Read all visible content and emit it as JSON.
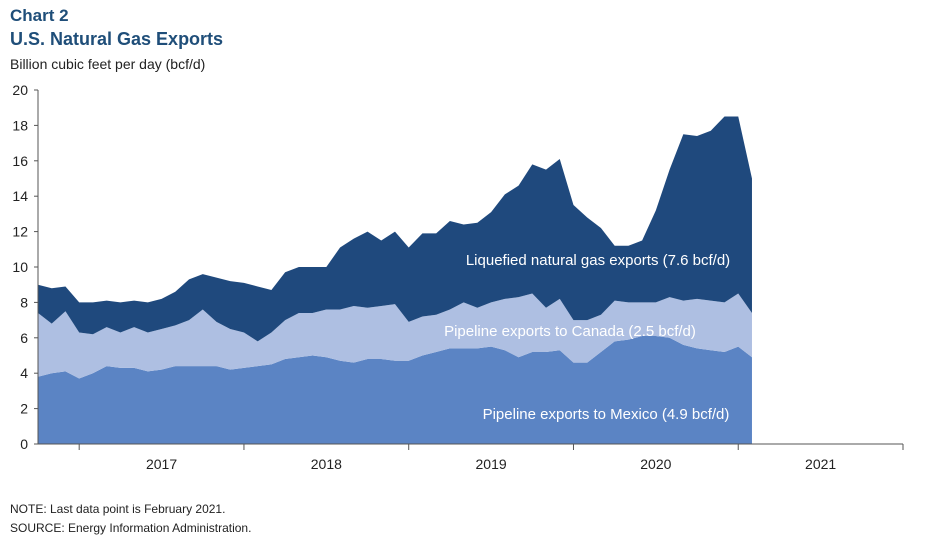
{
  "header": {
    "chart_label": "Chart 2",
    "title": "U.S. Natural Gas Exports",
    "units": "Billion cubic feet per day (bcf/d)"
  },
  "notes": {
    "note": "NOTE: Last data point is February 2021.",
    "source": "SOURCE: Energy Information  Administration."
  },
  "colors": {
    "mexico": "#5b84c4",
    "canada": "#aebfe2",
    "lng": "#1f497d",
    "axis": "#555555",
    "label_text": "#ffffff"
  },
  "chart_data": {
    "type": "area",
    "stacked": true,
    "ylim": [
      0,
      20
    ],
    "yticks": [
      0,
      2,
      4,
      6,
      8,
      10,
      12,
      14,
      16,
      18,
      20
    ],
    "x_start": "2016-10",
    "x_end": "2021-12",
    "year_labels": [
      "2017",
      "2018",
      "2019",
      "2020",
      "2021"
    ],
    "grid": false,
    "x": [
      "2016-10",
      "2016-11",
      "2016-12",
      "2017-01",
      "2017-02",
      "2017-03",
      "2017-04",
      "2017-05",
      "2017-06",
      "2017-07",
      "2017-08",
      "2017-09",
      "2017-10",
      "2017-11",
      "2017-12",
      "2018-01",
      "2018-02",
      "2018-03",
      "2018-04",
      "2018-05",
      "2018-06",
      "2018-07",
      "2018-08",
      "2018-09",
      "2018-10",
      "2018-11",
      "2018-12",
      "2019-01",
      "2019-02",
      "2019-03",
      "2019-04",
      "2019-05",
      "2019-06",
      "2019-07",
      "2019-08",
      "2019-09",
      "2019-10",
      "2019-11",
      "2019-12",
      "2020-01",
      "2020-02",
      "2020-03",
      "2020-04",
      "2020-05",
      "2020-06",
      "2020-07",
      "2020-08",
      "2020-09",
      "2020-10",
      "2020-11",
      "2020-12",
      "2021-01",
      "2021-02"
    ],
    "series": [
      {
        "name": "Pipeline exports to Mexico (4.9 bcf/d)",
        "values": [
          3.8,
          4.0,
          4.1,
          3.7,
          4.0,
          4.4,
          4.3,
          4.3,
          4.1,
          4.2,
          4.4,
          4.4,
          4.4,
          4.4,
          4.2,
          4.3,
          4.4,
          4.5,
          4.8,
          4.9,
          5.0,
          4.9,
          4.7,
          4.6,
          4.8,
          4.8,
          4.7,
          4.7,
          5.0,
          5.2,
          5.4,
          5.4,
          5.4,
          5.5,
          5.3,
          4.9,
          5.2,
          5.2,
          5.3,
          4.6,
          4.6,
          5.2,
          5.8,
          5.9,
          6.1,
          6.1,
          6.0,
          5.6,
          5.4,
          5.3,
          5.2,
          5.5,
          4.9
        ]
      },
      {
        "name": "Pipeline exports to Canada (2.5 bcf/d)",
        "values": [
          3.6,
          2.8,
          3.4,
          2.6,
          2.2,
          2.2,
          2.0,
          2.3,
          2.2,
          2.3,
          2.3,
          2.6,
          3.2,
          2.5,
          2.3,
          2.0,
          1.4,
          1.8,
          2.2,
          2.5,
          2.4,
          2.7,
          2.9,
          3.2,
          2.9,
          3.0,
          3.2,
          2.2,
          2.2,
          2.1,
          2.2,
          2.6,
          2.3,
          2.5,
          2.9,
          3.4,
          3.3,
          2.5,
          2.9,
          2.4,
          2.4,
          2.1,
          2.3,
          2.1,
          1.9,
          1.9,
          2.3,
          2.5,
          2.8,
          2.8,
          2.8,
          3.0,
          2.5
        ]
      },
      {
        "name": "Liquefied natural  gas exports (7.6 bcf/d)",
        "values": [
          1.6,
          2.0,
          1.4,
          1.7,
          1.8,
          1.5,
          1.7,
          1.5,
          1.7,
          1.7,
          1.9,
          2.3,
          2.0,
          2.5,
          2.7,
          2.8,
          3.1,
          2.4,
          2.7,
          2.6,
          2.6,
          2.4,
          3.5,
          3.8,
          4.3,
          3.7,
          4.1,
          4.2,
          4.7,
          4.6,
          5.0,
          4.4,
          4.8,
          5.1,
          5.9,
          6.3,
          7.3,
          7.8,
          7.9,
          6.5,
          5.8,
          4.9,
          3.1,
          3.2,
          3.5,
          5.2,
          7.2,
          9.4,
          9.2,
          9.6,
          10.5,
          10.0,
          7.6
        ]
      }
    ]
  }
}
